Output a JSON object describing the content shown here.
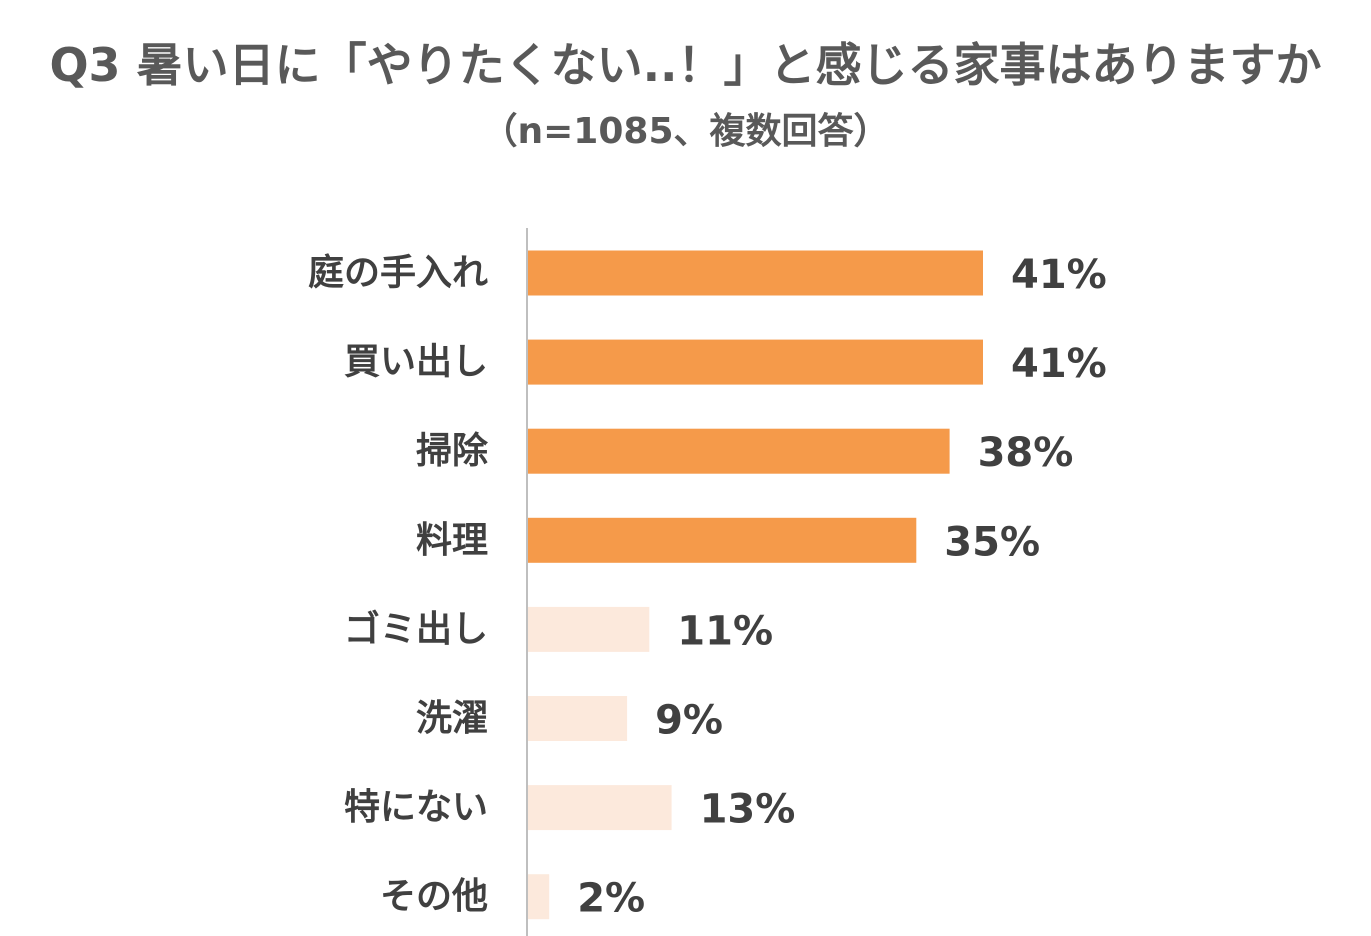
{
  "chart_data": {
    "type": "bar",
    "orientation": "horizontal",
    "title": "Q3 暑い日に「やりたくない..！」と感じる家事はありますか",
    "subtitle": "（n=1085、複数回答）",
    "categories": [
      "庭の手入れ",
      "買い出し",
      "掃除",
      "料理",
      "ゴミ出し",
      "洗濯",
      "特にない",
      "その他"
    ],
    "values": [
      41,
      41,
      38,
      35,
      11,
      9,
      13,
      2
    ],
    "value_labels": [
      "41%",
      "41%",
      "38%",
      "35%",
      "11%",
      "9%",
      "13%",
      "2%"
    ],
    "xlim": [
      0,
      50
    ],
    "grid": false,
    "legend": "none",
    "colors": {
      "highlight": "#F59A4A",
      "muted": "#FCE9DC",
      "axis": "#BFBFBF"
    },
    "highlighted": [
      true,
      true,
      true,
      true,
      false,
      false,
      false,
      false
    ]
  }
}
